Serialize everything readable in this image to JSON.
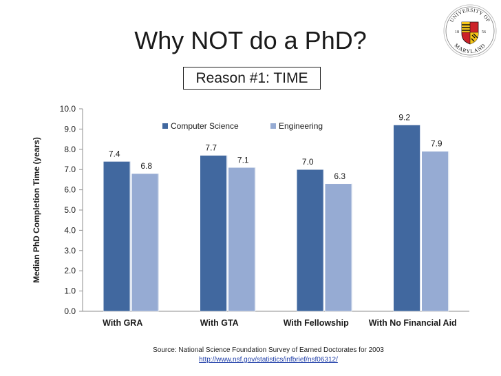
{
  "slide": {
    "title": "Why NOT do a PhD?",
    "subtitle": "Reason #1: TIME"
  },
  "logo": {
    "text_top": "UNIVERSITY OF",
    "text_bottom": "MARYLAND",
    "year_left": "18",
    "year_right": "56",
    "colors": {
      "red": "#cc2229",
      "gold": "#f5c518",
      "black": "#111111"
    }
  },
  "chart_data": {
    "type": "bar",
    "categories": [
      "With GRA",
      "With GTA",
      "With Fellowship",
      "With No Financial Aid"
    ],
    "series": [
      {
        "name": "Computer Science",
        "values": [
          7.4,
          7.7,
          7.0,
          9.2
        ],
        "color": "#41689f"
      },
      {
        "name": "Engineering",
        "values": [
          6.8,
          7.1,
          6.3,
          7.9
        ],
        "color": "#96abd3"
      }
    ],
    "value_labels": [
      [
        "7.4",
        "7.7",
        "7.0",
        "9.2"
      ],
      [
        "6.8",
        "7.1",
        "6.3",
        "7.9"
      ]
    ],
    "ylabel": "Median PhD Completion Time  (years)",
    "xlabel": "",
    "ylim": [
      0,
      10
    ],
    "y_ticks": [
      "0.0",
      "1.0",
      "2.0",
      "3.0",
      "4.0",
      "5.0",
      "6.0",
      "7.0",
      "8.0",
      "9.0",
      "10.0"
    ],
    "legend_position": "top-center",
    "grid": false
  },
  "source": {
    "text": "Source: National Science Foundation Survey of Earned Doctorates for 2003",
    "link": "http://www.nsf.gov/statistics/infbrief/nsf06312/"
  }
}
